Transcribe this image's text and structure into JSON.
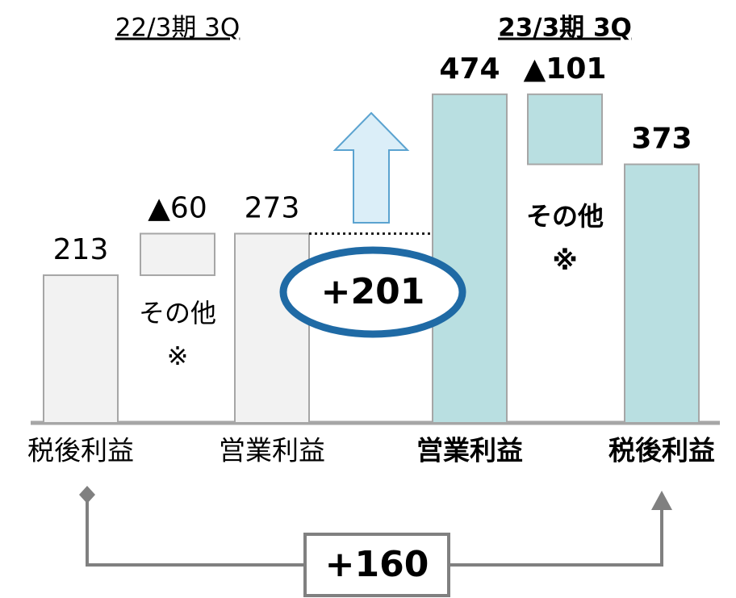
{
  "chart_data": [
    {
      "type": "waterfall",
      "title": "22/3期 3Q",
      "categories": [
        "税後利益",
        null,
        "営業利益"
      ],
      "values": [
        213,
        -60,
        273
      ],
      "value_labels": [
        "213",
        "▲60",
        "273"
      ],
      "annotations": [
        "その他",
        "※"
      ],
      "color": "#f2f2f2",
      "ylim": [
        0,
        610
      ]
    },
    {
      "type": "waterfall",
      "title": "23/3期 3Q",
      "categories": [
        "営業利益",
        null,
        "税後利益"
      ],
      "values": [
        474,
        -101,
        373
      ],
      "value_labels": [
        "474",
        "▲101",
        "373"
      ],
      "annotations": [
        "その他",
        "※"
      ],
      "color": "#b9dfe1",
      "ylim": [
        0,
        610
      ]
    }
  ],
  "annotations": [
    "+201",
    "+160"
  ]
}
